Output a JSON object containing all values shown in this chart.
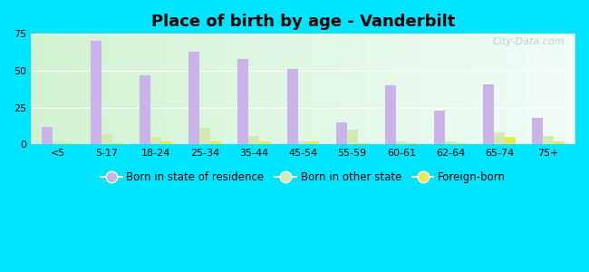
{
  "title": "Place of birth by age - Vanderbilt",
  "categories": [
    "<5",
    "5-17",
    "18-24",
    "25-34",
    "35-44",
    "45-54",
    "55-59",
    "60-61",
    "62-64",
    "65-74",
    "75+"
  ],
  "born_in_state": [
    12,
    70,
    47,
    63,
    58,
    51,
    15,
    40,
    23,
    41,
    18
  ],
  "born_other_state": [
    2,
    7,
    5,
    11,
    6,
    2,
    10,
    2,
    2,
    8,
    6
  ],
  "foreign_born": [
    1,
    1,
    2,
    2,
    2,
    2,
    1,
    1,
    1,
    5,
    2
  ],
  "bar_color_state": "#c9b3e8",
  "bar_color_other": "#d4e8b0",
  "bar_color_foreign": "#ece84a",
  "ylim": [
    0,
    75
  ],
  "yticks": [
    0,
    25,
    50,
    75
  ],
  "outer_bg": "#00e5ff",
  "legend_labels": [
    "Born in state of residence",
    "Born in other state",
    "Foreign-born"
  ],
  "watermark": "City-Data.com",
  "bar_width": 0.22
}
